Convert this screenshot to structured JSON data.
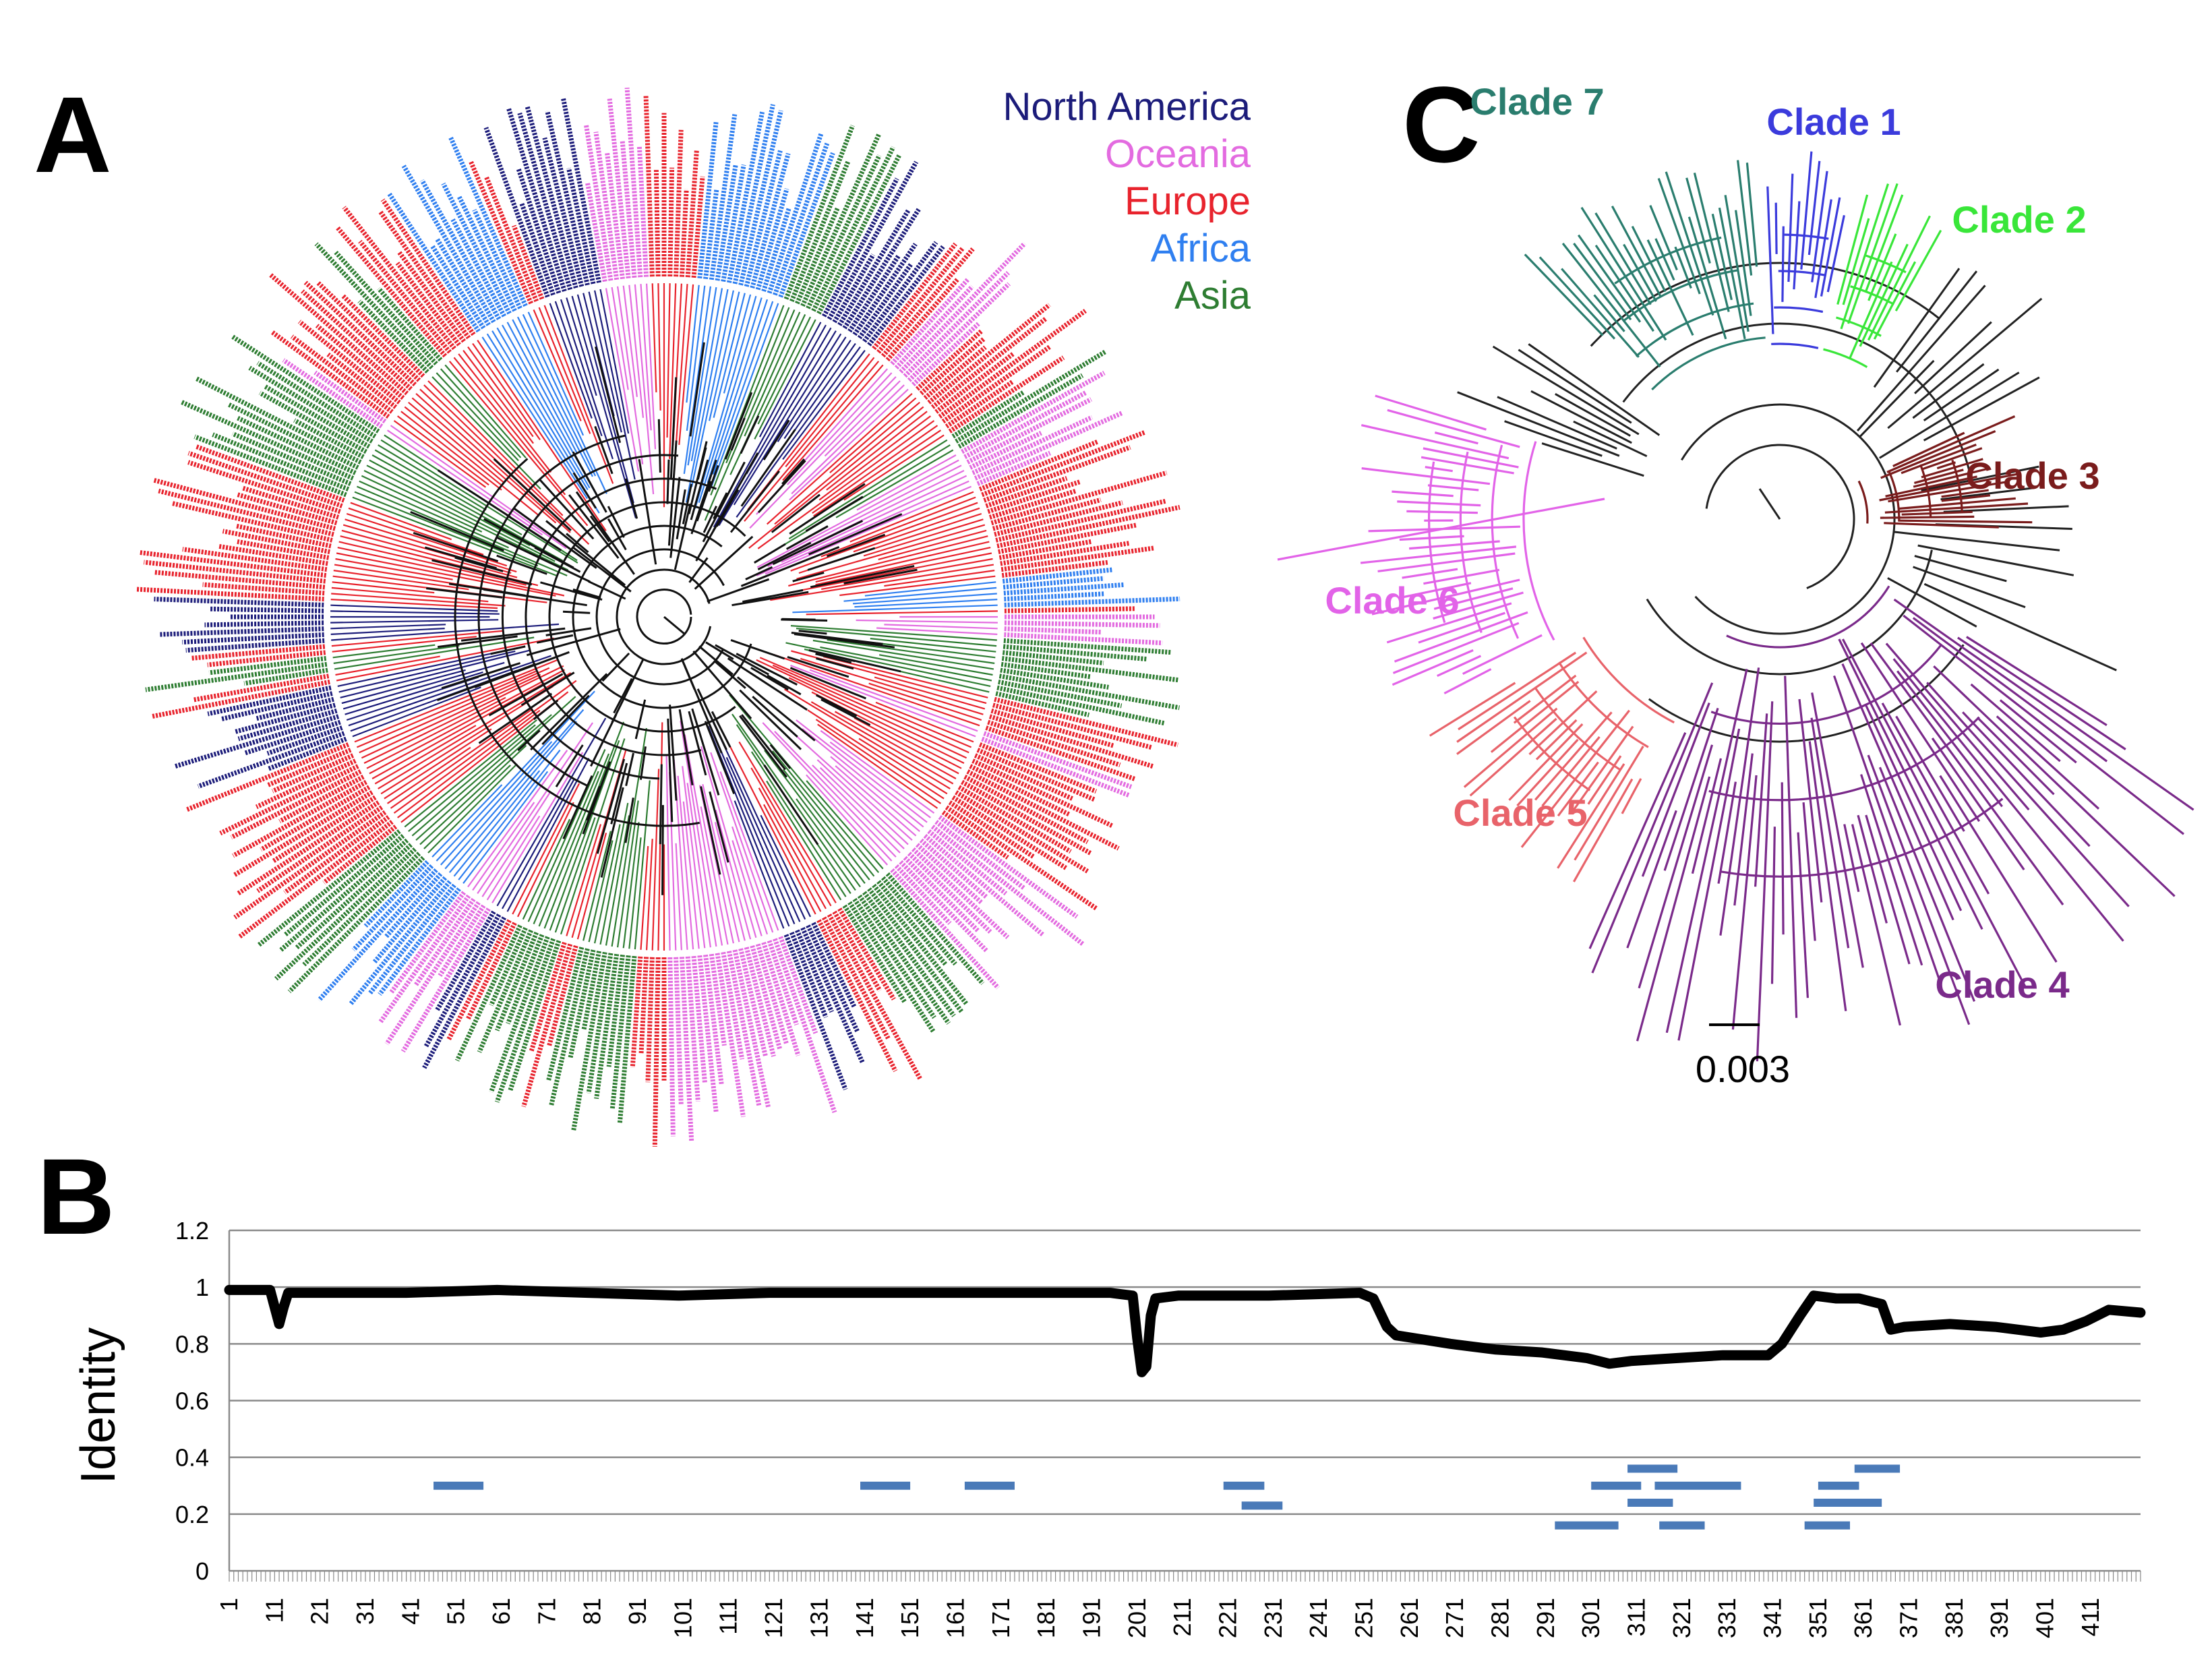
{
  "panels": {
    "a": "A",
    "b": "B",
    "c": "C"
  },
  "colors": {
    "north_america": "#1c1c7a",
    "oceania": "#e36be0",
    "europe": "#e8232d",
    "africa": "#2f7ff0",
    "asia": "#2e7d32",
    "black": "#111111",
    "bar": "#4a7ab8"
  },
  "legend": [
    {
      "label": "North America",
      "color": "#1c1c7a"
    },
    {
      "label": "Oceania",
      "color": "#e36be0"
    },
    {
      "label": "Europe",
      "color": "#e8232d"
    },
    {
      "label": "Africa",
      "color": "#2f7ff0"
    },
    {
      "label": "Asia",
      "color": "#2e7d32"
    }
  ],
  "clades": [
    {
      "label": "Clade 7",
      "color": "#2a7d6e"
    },
    {
      "label": "Clade 1",
      "color": "#3b3bdc"
    },
    {
      "label": "Clade 2",
      "color": "#39e639"
    },
    {
      "label": "Clade 3",
      "color": "#7a1c1c"
    },
    {
      "label": "Clade 6",
      "color": "#e263e8"
    },
    {
      "label": "Clade 5",
      "color": "#e8636a"
    },
    {
      "label": "Clade 4",
      "color": "#7a2a8a"
    }
  ],
  "scale_bar": "0.003",
  "chart_data": {
    "type": "line",
    "ylabel": "Identity",
    "xlabel": "",
    "ylim": [
      0,
      1.2
    ],
    "yticks": [
      "0",
      "0.2",
      "0.4",
      "0.6",
      "0.8",
      "1",
      "1.2"
    ],
    "xlim": [
      1,
      422
    ],
    "xticks": [
      "1",
      "11",
      "21",
      "31",
      "41",
      "51",
      "61",
      "71",
      "81",
      "91",
      "101",
      "111",
      "121",
      "131",
      "141",
      "151",
      "161",
      "171",
      "181",
      "191",
      "201",
      "211",
      "221",
      "231",
      "241",
      "251",
      "261",
      "271",
      "281",
      "291",
      "301",
      "311",
      "321",
      "331",
      "341",
      "351",
      "361",
      "371",
      "381",
      "391",
      "401",
      "411"
    ],
    "series": [
      {
        "name": "Identity",
        "x": [
          1,
          10,
          11,
          12,
          13,
          14,
          20,
          40,
          60,
          80,
          100,
          120,
          140,
          160,
          180,
          195,
          200,
          201,
          202,
          203,
          204,
          205,
          210,
          230,
          250,
          253,
          256,
          258,
          262,
          270,
          280,
          290,
          300,
          305,
          310,
          320,
          330,
          340,
          343,
          347,
          350,
          355,
          360,
          365,
          367,
          370,
          380,
          390,
          400,
          405,
          410,
          415,
          422
        ],
        "values": [
          0.99,
          0.99,
          0.93,
          0.87,
          0.93,
          0.98,
          0.98,
          0.98,
          0.99,
          0.98,
          0.97,
          0.98,
          0.98,
          0.98,
          0.98,
          0.98,
          0.97,
          0.82,
          0.7,
          0.72,
          0.9,
          0.96,
          0.97,
          0.97,
          0.98,
          0.96,
          0.86,
          0.83,
          0.82,
          0.8,
          0.78,
          0.77,
          0.75,
          0.73,
          0.74,
          0.75,
          0.76,
          0.76,
          0.8,
          0.9,
          0.97,
          0.96,
          0.96,
          0.94,
          0.85,
          0.86,
          0.87,
          0.86,
          0.84,
          0.85,
          0.88,
          0.92,
          0.91
        ]
      }
    ],
    "segments": [
      {
        "x1": 46,
        "x2": 57,
        "y": 0.3
      },
      {
        "x1": 140,
        "x2": 151,
        "y": 0.3
      },
      {
        "x1": 163,
        "x2": 174,
        "y": 0.3
      },
      {
        "x1": 220,
        "x2": 229,
        "y": 0.3
      },
      {
        "x1": 224,
        "x2": 233,
        "y": 0.23
      },
      {
        "x1": 293,
        "x2": 307,
        "y": 0.16
      },
      {
        "x1": 301,
        "x2": 312,
        "y": 0.3
      },
      {
        "x1": 309,
        "x2": 320,
        "y": 0.36
      },
      {
        "x1": 309,
        "x2": 319,
        "y": 0.24
      },
      {
        "x1": 315,
        "x2": 334,
        "y": 0.3
      },
      {
        "x1": 316,
        "x2": 326,
        "y": 0.16
      },
      {
        "x1": 348,
        "x2": 358,
        "y": 0.16
      },
      {
        "x1": 350,
        "x2": 362,
        "y": 0.24
      },
      {
        "x1": 351,
        "x2": 360,
        "y": 0.3
      },
      {
        "x1": 359,
        "x2": 369,
        "y": 0.36
      },
      {
        "x1": 353,
        "x2": 365,
        "y": 0.24
      }
    ]
  }
}
